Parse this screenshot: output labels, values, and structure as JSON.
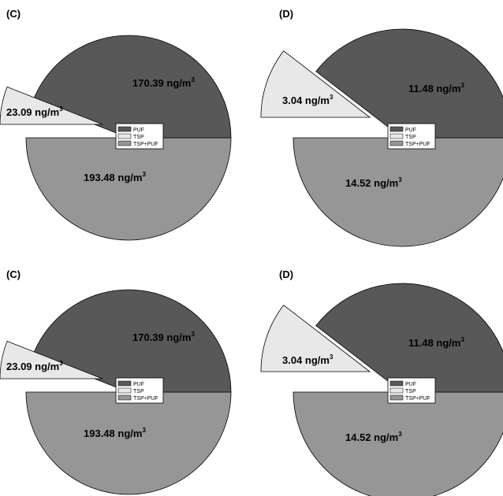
{
  "colors": {
    "PUF": "#585858",
    "TSP": "#e8e8e8",
    "TSP+PUF": "#969696",
    "stroke": "#000000"
  },
  "chart_data": [
    {
      "type": "pie",
      "panel_label": "(C)",
      "legend": [
        "PUF",
        "TSP",
        "TSP+PUF"
      ],
      "slices": [
        {
          "name": "PUF",
          "value": 170.39,
          "label": "170.39 ng/m",
          "sup": "3"
        },
        {
          "name": "TSP",
          "value": 23.09,
          "label": "23.09 ng/m",
          "sup": "3"
        },
        {
          "name": "TSP+PUF",
          "value": 193.48,
          "label": "193.48 ng/m",
          "sup": "3"
        }
      ]
    },
    {
      "type": "pie",
      "panel_label": "(D)",
      "legend": [
        "PUF",
        "TSP",
        "TSP+PUF"
      ],
      "slices": [
        {
          "name": "PUF",
          "value": 11.48,
          "label": "11.48 ng/m",
          "sup": "3"
        },
        {
          "name": "TSP",
          "value": 3.04,
          "label": "3.04 ng/m",
          "sup": "3"
        },
        {
          "name": "TSP+PUF",
          "value": 14.52,
          "label": "14.52 ng/m",
          "sup": "3"
        }
      ]
    },
    {
      "type": "pie",
      "panel_label": "(C)",
      "legend": [
        "PUF",
        "TSP",
        "TSP+PUF"
      ],
      "slices": [
        {
          "name": "PUF",
          "value": 170.39,
          "label": "170.39 ng/m",
          "sup": "3"
        },
        {
          "name": "TSP",
          "value": 23.09,
          "label": "23.09 ng/m",
          "sup": "3"
        },
        {
          "name": "TSP+PUF",
          "value": 193.48,
          "label": "193.48 ng/m",
          "sup": "3"
        }
      ]
    },
    {
      "type": "pie",
      "panel_label": "(D)",
      "legend": [
        "PUF",
        "TSP",
        "TSP+PUF"
      ],
      "slices": [
        {
          "name": "PUF",
          "value": 11.48,
          "label": "11.48 ng/m",
          "sup": "3"
        },
        {
          "name": "TSP",
          "value": 3.04,
          "label": "3.04 ng/m",
          "sup": "3"
        },
        {
          "name": "TSP+PUF",
          "value": 14.52,
          "label": "14.52 ng/m",
          "sup": "3"
        }
      ]
    }
  ]
}
